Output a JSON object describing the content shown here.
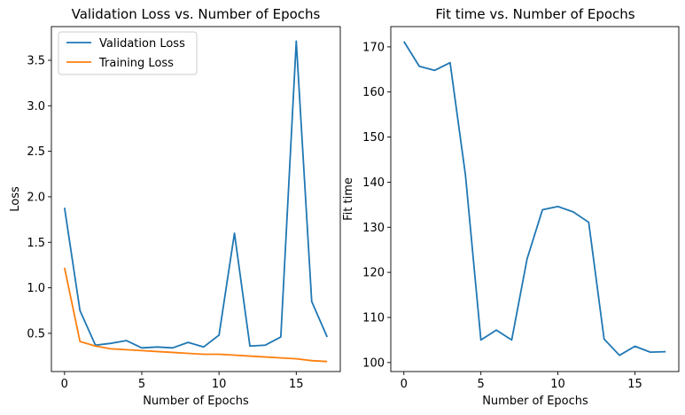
{
  "chart_data": [
    {
      "type": "line",
      "title": "Validation Loss vs. Number of Epochs",
      "xlabel": "Number of Epochs",
      "ylabel": "Loss",
      "xlim": [
        -0.85,
        17.85
      ],
      "ylim": [
        0.08,
        3.87
      ],
      "xticks": [
        0,
        5,
        10,
        15
      ],
      "yticks": [
        0.5,
        1.0,
        1.5,
        2.0,
        2.5,
        3.0,
        3.5
      ],
      "ytick_labels": [
        "0.5",
        "1.0",
        "1.5",
        "2.0",
        "2.5",
        "3.0",
        "3.5"
      ],
      "legend": "top-left",
      "grid": false,
      "x": [
        0,
        1,
        2,
        3,
        4,
        5,
        6,
        7,
        8,
        9,
        10,
        11,
        12,
        13,
        14,
        15,
        16,
        17
      ],
      "series": [
        {
          "name": "Validation Loss",
          "color": "#1f77b4",
          "values": [
            1.88,
            0.75,
            0.37,
            0.39,
            0.42,
            0.34,
            0.35,
            0.34,
            0.4,
            0.35,
            0.48,
            1.6,
            0.36,
            0.37,
            0.46,
            3.71,
            0.85,
            0.46
          ]
        },
        {
          "name": "Training Loss",
          "color": "#ff7f0e",
          "values": [
            1.22,
            0.41,
            0.36,
            0.33,
            0.32,
            0.31,
            0.3,
            0.29,
            0.28,
            0.27,
            0.27,
            0.26,
            0.25,
            0.24,
            0.23,
            0.22,
            0.2,
            0.19
          ]
        }
      ]
    },
    {
      "type": "line",
      "title": "Fit time vs. Number of Epochs",
      "xlabel": "Number of Epochs",
      "ylabel": "Fit time",
      "xlim": [
        -0.85,
        17.85
      ],
      "ylim": [
        98.0,
        174.5
      ],
      "xticks": [
        0,
        5,
        10,
        15
      ],
      "yticks": [
        100,
        110,
        120,
        130,
        140,
        150,
        160,
        170
      ],
      "ytick_labels": [
        "100",
        "110",
        "120",
        "130",
        "140",
        "150",
        "160",
        "170"
      ],
      "legend": "none",
      "grid": false,
      "x": [
        0,
        1,
        2,
        3,
        4,
        5,
        6,
        7,
        8,
        9,
        10,
        11,
        12,
        13,
        14,
        15,
        16,
        17
      ],
      "series": [
        {
          "color": "#1f77b4",
          "values": [
            171.2,
            165.7,
            164.8,
            166.5,
            141.5,
            105.0,
            107.2,
            105.0,
            123.0,
            133.9,
            134.6,
            133.4,
            131.1,
            105.2,
            101.6,
            103.6,
            102.3,
            102.4
          ]
        }
      ]
    }
  ]
}
